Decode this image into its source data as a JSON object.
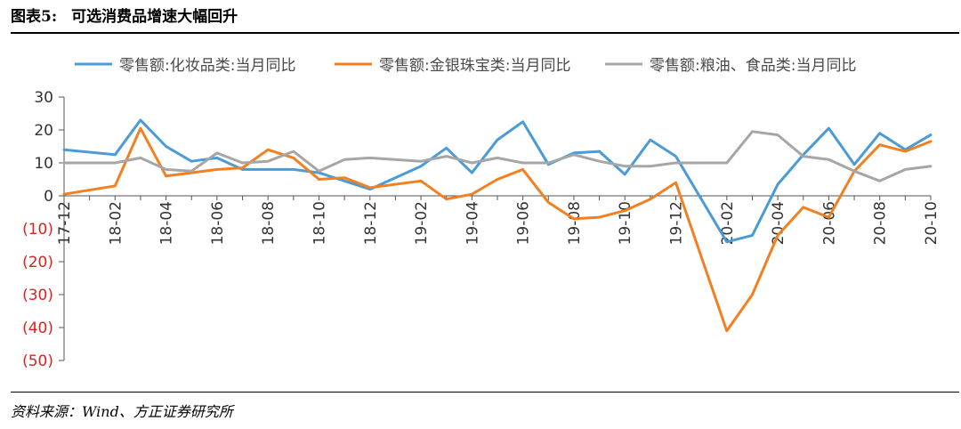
{
  "figure": {
    "label": "图表5:",
    "title": "可选消费品增速大幅回升",
    "source": "资料来源：Wind、方正证券研究所"
  },
  "colors": {
    "series_1": "#4a9bd6",
    "series_2": "#f28020",
    "series_3": "#a6a6a6",
    "negative_tick": "#e02020",
    "axis": "#555555"
  },
  "chart_data": {
    "type": "line",
    "title": "",
    "xlabel": "",
    "ylabel": "",
    "ylim": [
      -50,
      30
    ],
    "yticks": [
      30,
      20,
      10,
      0,
      -10,
      -20,
      -30,
      -40,
      -50
    ],
    "ytick_labels": [
      "30",
      "20",
      "10",
      "0",
      "(10)",
      "(20)",
      "(30)",
      "(40)",
      "(50)"
    ],
    "grid": false,
    "legend_position": "top",
    "x": [
      "17-12",
      "18-01",
      "18-02",
      "18-03",
      "18-04",
      "18-05",
      "18-06",
      "18-07",
      "18-08",
      "18-09",
      "18-10",
      "18-11",
      "18-12",
      "19-01",
      "19-02",
      "19-03",
      "19-04",
      "19-05",
      "19-06",
      "19-07",
      "19-08",
      "19-09",
      "19-10",
      "19-11",
      "19-12",
      "20-01",
      "20-02",
      "20-03",
      "20-04",
      "20-05",
      "20-06",
      "20-07",
      "20-08",
      "20-09",
      "20-10"
    ],
    "x_tick_labels": [
      "17-12",
      "18-02",
      "18-04",
      "18-06",
      "18-08",
      "18-10",
      "18-12",
      "19-02",
      "19-04",
      "19-06",
      "19-08",
      "19-10",
      "19-12",
      "20-02",
      "20-04",
      "20-06",
      "20-08",
      "20-10"
    ],
    "series": [
      {
        "name": "零售额:化妆品类:当月同比",
        "values": [
          14,
          null,
          12.5,
          23,
          15,
          10.5,
          11.5,
          8,
          8,
          8,
          7,
          4.5,
          2,
          null,
          9,
          14.5,
          7,
          17,
          22.5,
          9.5,
          13,
          13.5,
          6.5,
          17,
          12,
          null,
          -14,
          -12,
          3.5,
          12.5,
          20.5,
          9.5,
          19,
          14,
          18.5
        ]
      },
      {
        "name": "零售额:金银珠宝类:当月同比",
        "values": [
          0.5,
          null,
          3,
          20.5,
          6,
          7,
          8,
          8.5,
          14,
          11.5,
          5,
          5.5,
          2.5,
          null,
          4.5,
          -1,
          0.5,
          5,
          8,
          -2,
          -7,
          -6.5,
          -4.5,
          -1,
          4,
          null,
          -41,
          -30,
          -12,
          -3.5,
          -6.5,
          7.5,
          15.5,
          13.5,
          16.5
        ]
      },
      {
        "name": "零售额:粮油、食品类:当月同比",
        "values": [
          10,
          null,
          10,
          11.5,
          8,
          7.5,
          13,
          10,
          10.5,
          13.5,
          7.5,
          11,
          11.5,
          null,
          10.5,
          12,
          10,
          11.5,
          10,
          10,
          12.5,
          10.5,
          9,
          9,
          10,
          null,
          10,
          19.5,
          18.5,
          12,
          11,
          7.5,
          4.5,
          8,
          9
        ]
      }
    ]
  }
}
